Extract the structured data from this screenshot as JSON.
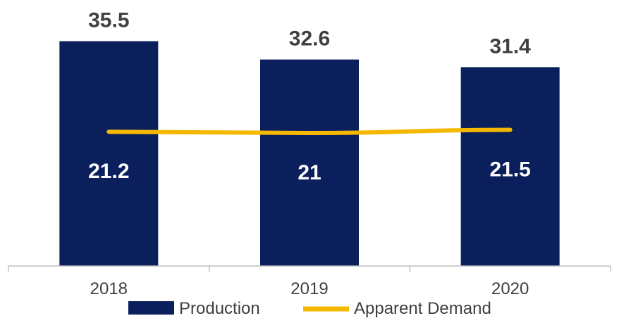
{
  "chart_data": {
    "type": "bar",
    "categories": [
      "2018",
      "2019",
      "2020"
    ],
    "series": [
      {
        "name": "Production",
        "type": "bar",
        "values": [
          35.5,
          32.6,
          31.4
        ]
      },
      {
        "name": "Apparent Demand",
        "type": "line",
        "values": [
          21.2,
          21,
          21.5
        ]
      }
    ],
    "title": "",
    "xlabel": "",
    "ylabel": "",
    "ylim": [
      0,
      40
    ],
    "grid": false,
    "legend": "bottom",
    "colors": {
      "Production": "#0b1f5c",
      "Apparent Demand": "#f5b800"
    }
  }
}
